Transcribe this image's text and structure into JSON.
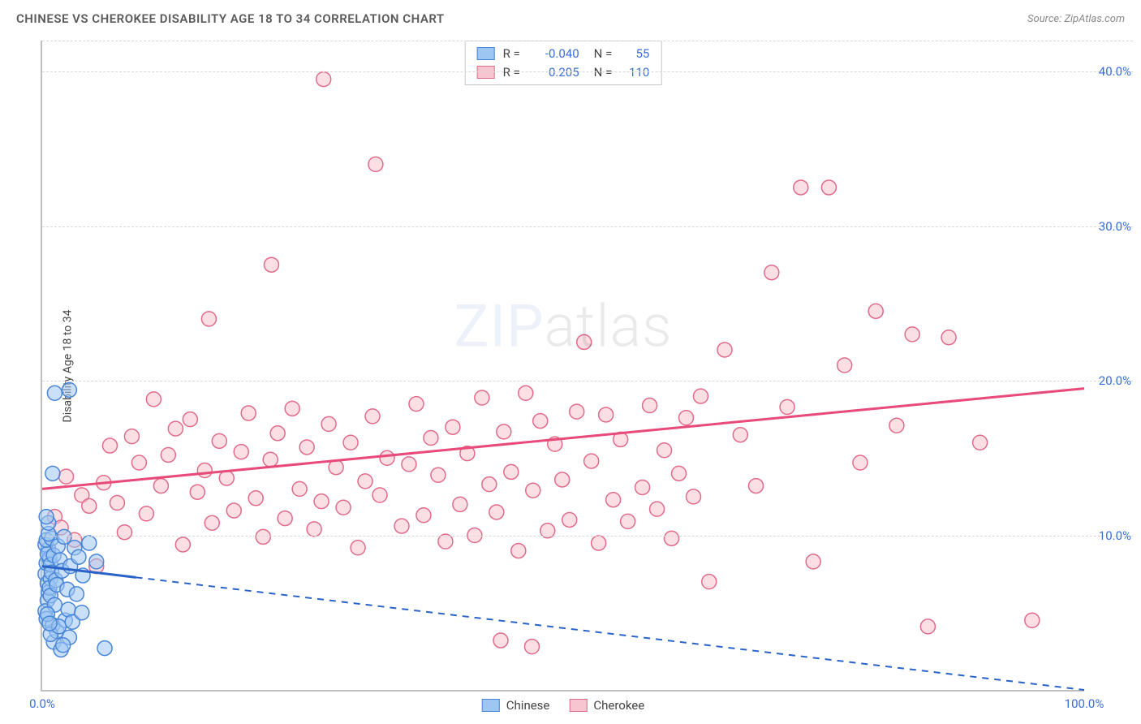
{
  "header": {
    "title": "CHINESE VS CHEROKEE DISABILITY AGE 18 TO 34 CORRELATION CHART",
    "source_prefix": "Source: ",
    "source_name": "ZipAtlas.com"
  },
  "ylabel": "Disability Age 18 to 34",
  "watermark": {
    "part1": "ZIP",
    "part2": "atlas"
  },
  "axes": {
    "xmin": 0,
    "xmax": 100,
    "ymin": 0,
    "ymax": 42,
    "xticks": [
      {
        "v": 0,
        "label": "0.0%"
      },
      {
        "v": 100,
        "label": "100.0%"
      }
    ],
    "yticks": [
      {
        "v": 10,
        "label": "10.0%"
      },
      {
        "v": 20,
        "label": "20.0%"
      },
      {
        "v": 30,
        "label": "30.0%"
      },
      {
        "v": 40,
        "label": "40.0%"
      }
    ],
    "grid_color": "#d8d8d8"
  },
  "series": {
    "chinese": {
      "label": "Chinese",
      "R": "-0.040",
      "N": "55",
      "fill": "#9ec6f3",
      "stroke": "#4a86d8",
      "line_color": "#2a63c8",
      "marker_r": 9,
      "marker_opacity": 0.55,
      "trend": {
        "x1": 0,
        "y1": 8.0,
        "x2": 100,
        "y2": 0.0,
        "solid_until_x": 9
      },
      "points": [
        [
          0.3,
          7.5
        ],
        [
          0.4,
          8.2
        ],
        [
          0.5,
          6.9
        ],
        [
          0.6,
          9.1
        ],
        [
          0.7,
          8.5
        ],
        [
          0.8,
          7.2
        ],
        [
          0.3,
          9.4
        ],
        [
          0.5,
          8.8
        ],
        [
          0.6,
          6.3
        ],
        [
          0.4,
          9.7
        ],
        [
          0.8,
          8.1
        ],
        [
          0.9,
          7.6
        ],
        [
          0.5,
          5.8
        ],
        [
          0.7,
          6.6
        ],
        [
          0.3,
          5.1
        ],
        [
          0.9,
          9.8
        ],
        [
          0.4,
          4.6
        ],
        [
          0.6,
          10.1
        ],
        [
          0.8,
          6.1
        ],
        [
          1.1,
          8.7
        ],
        [
          1.3,
          7.1
        ],
        [
          1.5,
          9.3
        ],
        [
          1.0,
          4.2
        ],
        [
          1.2,
          5.5
        ],
        [
          1.4,
          6.8
        ],
        [
          1.7,
          8.4
        ],
        [
          1.9,
          7.7
        ],
        [
          2.1,
          9.9
        ],
        [
          2.4,
          6.5
        ],
        [
          2.7,
          8.0
        ],
        [
          1.1,
          3.1
        ],
        [
          1.4,
          3.8
        ],
        [
          1.8,
          2.6
        ],
        [
          2.2,
          4.5
        ],
        [
          2.6,
          3.4
        ],
        [
          3.1,
          9.2
        ],
        [
          3.5,
          8.6
        ],
        [
          3.9,
          7.4
        ],
        [
          0.5,
          4.9
        ],
        [
          0.8,
          3.6
        ],
        [
          1.6,
          4.1
        ],
        [
          2.0,
          2.9
        ],
        [
          2.5,
          5.2
        ],
        [
          2.9,
          4.4
        ],
        [
          3.3,
          6.2
        ],
        [
          3.8,
          5.0
        ],
        [
          4.5,
          9.5
        ],
        [
          1.2,
          19.2
        ],
        [
          2.6,
          19.4
        ],
        [
          1.0,
          14.0
        ],
        [
          0.6,
          10.8
        ],
        [
          0.4,
          11.2
        ],
        [
          6.0,
          2.7
        ],
        [
          5.2,
          8.3
        ],
        [
          0.7,
          4.3
        ]
      ]
    },
    "cherokee": {
      "label": "Cherokee",
      "R": "0.205",
      "N": "110",
      "fill": "#f7c5d0",
      "stroke": "#e06b8a",
      "line_color": "#e84a7a",
      "marker_r": 9,
      "marker_opacity": 0.55,
      "trend": {
        "x1": 0,
        "y1": 13.0,
        "x2": 100,
        "y2": 19.5,
        "solid_until_x": 100
      },
      "points": [
        [
          1.2,
          11.2
        ],
        [
          1.8,
          10.5
        ],
        [
          2.3,
          13.8
        ],
        [
          3.1,
          9.7
        ],
        [
          3.8,
          12.6
        ],
        [
          4.5,
          11.9
        ],
        [
          5.2,
          8.0
        ],
        [
          5.9,
          13.4
        ],
        [
          6.5,
          15.8
        ],
        [
          7.2,
          12.1
        ],
        [
          7.9,
          10.2
        ],
        [
          8.6,
          16.4
        ],
        [
          9.3,
          14.7
        ],
        [
          10.0,
          11.4
        ],
        [
          10.7,
          18.8
        ],
        [
          11.4,
          13.2
        ],
        [
          12.1,
          15.2
        ],
        [
          12.8,
          16.9
        ],
        [
          13.5,
          9.4
        ],
        [
          14.2,
          17.5
        ],
        [
          14.9,
          12.8
        ],
        [
          15.6,
          14.2
        ],
        [
          16.3,
          10.8
        ],
        [
          17.0,
          16.1
        ],
        [
          17.7,
          13.7
        ],
        [
          18.4,
          11.6
        ],
        [
          19.1,
          15.4
        ],
        [
          19.8,
          17.9
        ],
        [
          20.5,
          12.4
        ],
        [
          21.2,
          9.9
        ],
        [
          21.9,
          14.9
        ],
        [
          22.6,
          16.6
        ],
        [
          23.3,
          11.1
        ],
        [
          24.0,
          18.2
        ],
        [
          24.7,
          13.0
        ],
        [
          25.4,
          15.7
        ],
        [
          26.1,
          10.4
        ],
        [
          26.8,
          12.2
        ],
        [
          27.5,
          17.2
        ],
        [
          28.2,
          14.4
        ],
        [
          28.9,
          11.8
        ],
        [
          29.6,
          16.0
        ],
        [
          30.3,
          9.2
        ],
        [
          31.0,
          13.5
        ],
        [
          31.7,
          17.7
        ],
        [
          32.4,
          12.6
        ],
        [
          33.1,
          15.0
        ],
        [
          27,
          39.5
        ],
        [
          34.5,
          10.6
        ],
        [
          35.2,
          14.6
        ],
        [
          35.9,
          18.5
        ],
        [
          36.6,
          11.3
        ],
        [
          37.3,
          16.3
        ],
        [
          38.0,
          13.9
        ],
        [
          38.7,
          9.6
        ],
        [
          39.4,
          17.0
        ],
        [
          40.1,
          12.0
        ],
        [
          40.8,
          15.3
        ],
        [
          41.5,
          10.0
        ],
        [
          42.2,
          18.9
        ],
        [
          42.9,
          13.3
        ],
        [
          43.6,
          11.5
        ],
        [
          44.3,
          16.7
        ],
        [
          45.0,
          14.1
        ],
        [
          45.7,
          9.0
        ],
        [
          46.4,
          19.2
        ],
        [
          47.1,
          12.9
        ],
        [
          47.8,
          17.4
        ],
        [
          48.5,
          10.3
        ],
        [
          49.2,
          15.9
        ],
        [
          49.9,
          13.6
        ],
        [
          50.6,
          11.0
        ],
        [
          51.3,
          18.0
        ],
        [
          52.0,
          22.5
        ],
        [
          52.7,
          14.8
        ],
        [
          53.4,
          9.5
        ],
        [
          54.1,
          17.8
        ],
        [
          54.8,
          12.3
        ],
        [
          55.5,
          16.2
        ],
        [
          56.2,
          10.9
        ],
        [
          32,
          34.0
        ],
        [
          57.6,
          13.1
        ],
        [
          58.3,
          18.4
        ],
        [
          59.0,
          11.7
        ],
        [
          59.7,
          15.5
        ],
        [
          60.4,
          9.8
        ],
        [
          61.1,
          14.0
        ],
        [
          61.8,
          17.6
        ],
        [
          62.5,
          12.5
        ],
        [
          63.2,
          19.0
        ],
        [
          64.0,
          7.0
        ],
        [
          65.5,
          22.0
        ],
        [
          67,
          16.5
        ],
        [
          68.5,
          13.2
        ],
        [
          70,
          27.0
        ],
        [
          71.5,
          18.3
        ],
        [
          72.8,
          32.5
        ],
        [
          74,
          8.3
        ],
        [
          75.5,
          32.5
        ],
        [
          77,
          21.0
        ],
        [
          78.5,
          14.7
        ],
        [
          80,
          24.5
        ],
        [
          47,
          2.8
        ],
        [
          82,
          17.1
        ],
        [
          83.5,
          23.0
        ],
        [
          85,
          4.1
        ],
        [
          87,
          22.8
        ],
        [
          90,
          16.0
        ],
        [
          95,
          4.5
        ],
        [
          16,
          24.0
        ],
        [
          22,
          27.5
        ],
        [
          44,
          3.2
        ]
      ]
    }
  },
  "legend_top": {
    "r_label": "R =",
    "n_label": "N ="
  },
  "bottom_legend": {
    "items": [
      "chinese",
      "cherokee"
    ]
  }
}
